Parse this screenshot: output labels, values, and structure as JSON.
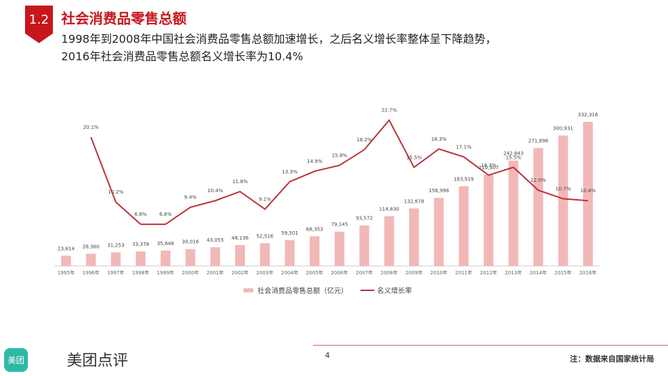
{
  "header": {
    "section": "1.2",
    "title": "社会消费品零售总额",
    "lines": [
      "1998年到2008年中国社会消费品零售总额加速增长，之后名义增长率整体呈下降趋势，",
      "2016年社会消费品零售总额名义增长率为10.4%"
    ]
  },
  "chart_data": {
    "type": "bar",
    "categories": [
      "1995年",
      "1996年",
      "1997年",
      "1998年",
      "1999年",
      "2000年",
      "2001年",
      "2002年",
      "2003年",
      "2004年",
      "2005年",
      "2006年",
      "2007年",
      "2008年",
      "2009年",
      "2010年",
      "2011年",
      "2012年",
      "2013年",
      "2014年",
      "2015年",
      "2016年"
    ],
    "series": [
      {
        "name": "社会消费品零售总额（亿元）",
        "color": "#f2b8b8",
        "values": [
          23614,
          28360,
          31253,
          33378,
          35648,
          39016,
          43055,
          48136,
          52516,
          59501,
          68353,
          79145,
          93572,
          114830,
          132678,
          156998,
          183919,
          210307,
          242843,
          271896,
          300931,
          332316
        ],
        "value_labels": [
          "23,614",
          "28,360",
          "31,253",
          "33,378",
          "35,648",
          "39,016",
          "43,055",
          "48,136",
          "52,516",
          "59,501",
          "68,353",
          "79,145",
          "93,572",
          "114,830",
          "132,678",
          "156,998",
          "183,919",
          "210,307",
          "242,843",
          "271,896",
          "300,931",
          "332,316"
        ]
      },
      {
        "name": "名义增长率",
        "type": "line",
        "color": "#b8333a",
        "values": [
          null,
          20.1,
          10.2,
          6.8,
          6.8,
          9.4,
          10.4,
          11.8,
          9.1,
          13.3,
          14.9,
          15.8,
          18.2,
          22.7,
          15.5,
          18.3,
          17.1,
          14.3,
          15.5,
          12.0,
          10.7,
          10.4
        ],
        "value_labels": [
          null,
          "20.1%",
          "10.2%",
          "6.8%",
          "6.8%",
          "9.4%",
          "10.4%",
          "11.8%",
          "9.1%",
          "13.3%",
          "14.9%",
          "15.8%",
          "18.2%",
          "22.7%",
          "15.5%",
          "18.3%",
          "17.1%",
          "14.3%",
          "15.5%",
          "12.0%",
          "10.7%",
          "10.4%"
        ]
      }
    ]
  },
  "footer": {
    "brand_icon": "美团",
    "brand": "美团点评",
    "page": "4",
    "note": "注：数据来自国家统计局"
  }
}
